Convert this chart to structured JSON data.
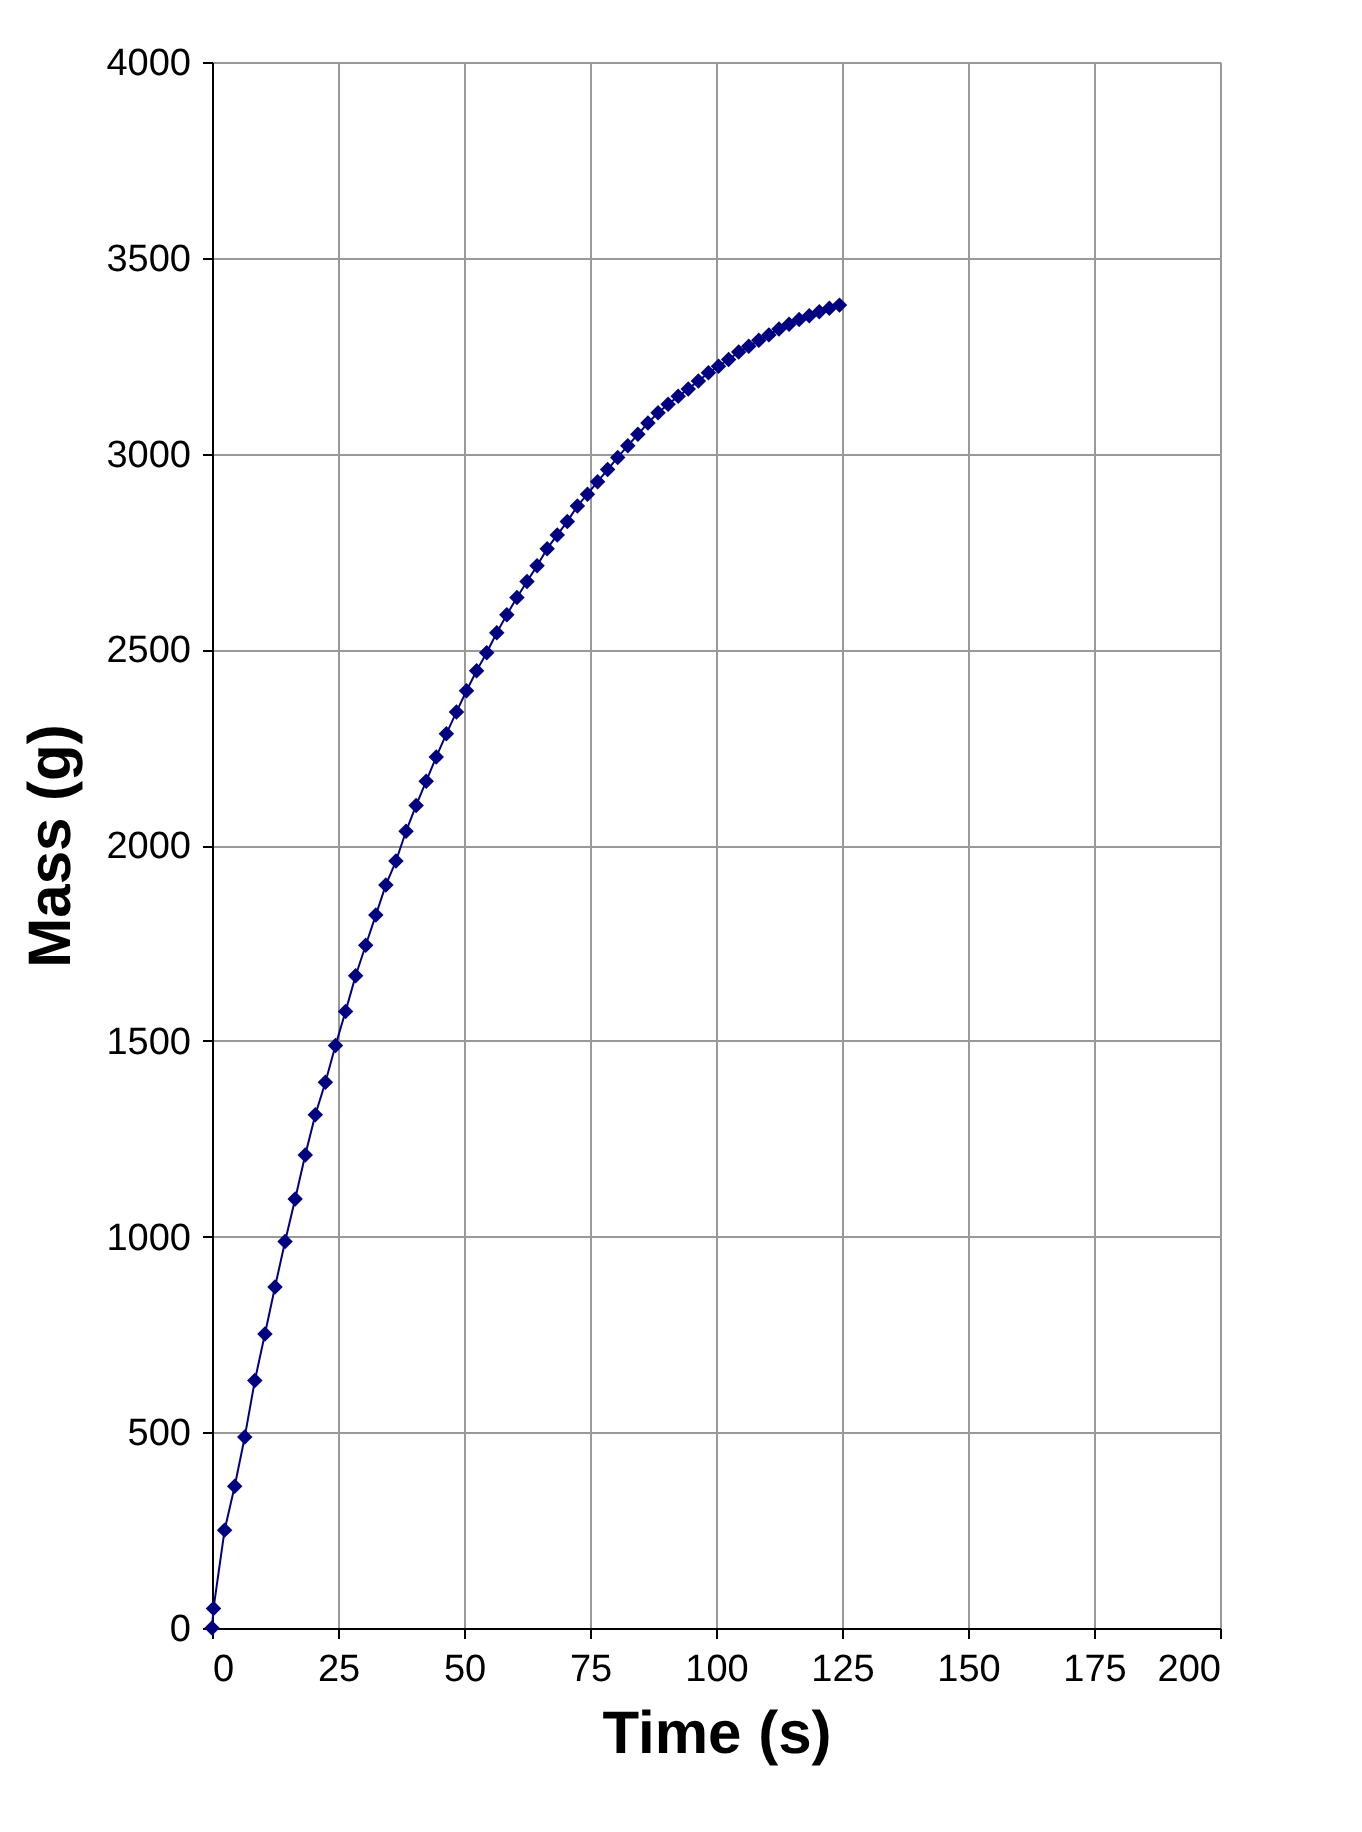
{
  "chart_data": {
    "type": "line",
    "xlabel": "Time (s)",
    "ylabel": "Mass (g)",
    "x": [
      0,
      0.3,
      2.5,
      4.5,
      6.5,
      8.5,
      10.5,
      12.5,
      14.5,
      16.5,
      18.5,
      20.5,
      22.5,
      24.5,
      26.5,
      28.5,
      30.5,
      32.5,
      34.5,
      36.5,
      38.5,
      40.5,
      42.5,
      44.5,
      46.5,
      48.5,
      50.5,
      52.5,
      54.5,
      56.5,
      58.5,
      60.5,
      62.5,
      64.5,
      66.5,
      68.5,
      70.5,
      72.5,
      74.5,
      76.5,
      78.5,
      80.5,
      82.5,
      84.5,
      86.5,
      88.5,
      90.5,
      92.5,
      94.5,
      96.5,
      98.5,
      100.5,
      102.5,
      104.5,
      106.5,
      108.5,
      110.5,
      112.5,
      114.5,
      116.5,
      118.5,
      120.5,
      122.5,
      124.5
    ],
    "series": [
      {
        "color": "#000080",
        "values": [
          0,
          50,
          250,
          362,
          488,
          632,
          751,
          871,
          987,
          1096,
          1208,
          1311,
          1394,
          1488,
          1575,
          1666,
          1744,
          1821,
          1898,
          1959,
          2035,
          2101,
          2163,
          2225,
          2284,
          2340,
          2394,
          2445,
          2491,
          2542,
          2588,
          2632,
          2673,
          2713,
          2757,
          2792,
          2826,
          2866,
          2896,
          2928,
          2959,
          2990,
          3020,
          3049,
          3078,
          3104,
          3126,
          3146,
          3165,
          3185,
          3206,
          3223,
          3240,
          3259,
          3274,
          3289,
          3303,
          3318,
          3330,
          3342,
          3352,
          3362,
          3371,
          3379
        ]
      }
    ],
    "xlim": [
      0,
      200
    ],
    "xticks": [
      0,
      25,
      50,
      75,
      100,
      125,
      150,
      175,
      200
    ],
    "ylim": [
      0,
      4000
    ],
    "yticks": [
      0,
      500,
      1000,
      1500,
      2000,
      2500,
      3000,
      3500,
      4000
    ],
    "grid": true,
    "marker": "diamond",
    "line_style": "solid"
  }
}
